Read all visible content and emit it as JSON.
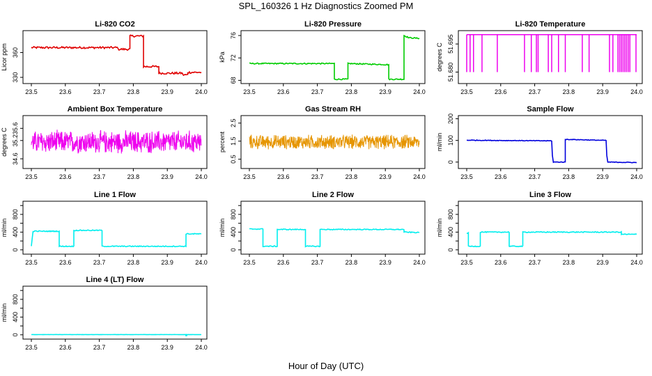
{
  "figure": {
    "title": "SPL_160326  1 Hz Diagnostics Zoomed PM",
    "xlabel": "Hour of Day (UTC)"
  },
  "chart_data": [
    {
      "type": "line",
      "title": "Li-820 CO2",
      "ylabel": "Licor ppm",
      "color": "#e00000",
      "xlim": [
        23.5,
        24.0
      ],
      "ylim": [
        325,
        384
      ],
      "yticks": [
        "330",
        "360"
      ],
      "ytick_values": [
        330,
        360
      ],
      "xticks": [
        "23.5",
        "23.6",
        "23.7",
        "23.8",
        "23.9",
        "24.0"
      ],
      "noise": 1.2,
      "series": [
        {
          "x": [
            23.5,
            23.755,
            23.755,
            23.79,
            23.79,
            23.83,
            23.83,
            23.875,
            23.875,
            23.945,
            23.945,
            23.96,
            23.96,
            24.0
          ],
          "y": [
            366,
            366,
            364,
            364,
            380,
            380,
            343,
            343,
            335,
            335,
            333,
            333,
            336,
            336
          ]
        }
      ]
    },
    {
      "type": "line",
      "title": "Li-820 Pressure",
      "ylabel": "kPa",
      "color": "#00cc00",
      "xlim": [
        23.5,
        24.0
      ],
      "ylim": [
        67.8,
        76.5
      ],
      "yticks": [
        "68",
        "72",
        "76"
      ],
      "ytick_values": [
        68,
        72,
        76
      ],
      "xticks": [
        "23.5",
        "23.6",
        "23.7",
        "23.8",
        "23.9",
        "24.0"
      ],
      "noise": 0.1,
      "series": [
        {
          "x": [
            23.5,
            23.75,
            23.75,
            23.79,
            23.79,
            23.91,
            23.91,
            23.955,
            23.955,
            23.97,
            24.0
          ],
          "y": [
            71.0,
            71.0,
            68.2,
            68.2,
            71.0,
            70.8,
            68.2,
            68.2,
            76.0,
            75.6,
            75.5
          ]
        }
      ]
    },
    {
      "type": "line",
      "title": "Li-820 Temperature",
      "ylabel": "degrees C",
      "color": "#ee00ee",
      "xlim": [
        23.5,
        24.0
      ],
      "ylim": [
        51.675,
        51.701
      ],
      "yticks": [
        "51.680",
        "51.695"
      ],
      "ytick_values": [
        51.68,
        51.695
      ],
      "xticks": [
        "23.5",
        "23.6",
        "23.7",
        "23.8",
        "23.9",
        "24.0"
      ],
      "baseline": 51.7,
      "spike_bottom": 51.68,
      "spikes": [
        23.5,
        23.51,
        23.52,
        23.545,
        23.59,
        23.67,
        23.69,
        23.705,
        23.71,
        23.74,
        23.75,
        23.77,
        23.79,
        23.84,
        23.86,
        23.92,
        23.93,
        23.945,
        23.95,
        23.955,
        23.96,
        23.965,
        23.97,
        23.975,
        23.98,
        23.998
      ]
    },
    {
      "type": "line",
      "title": "Ambient Box Temperature",
      "ylabel": "degrees C",
      "color": "#ee00ee",
      "xlim": [
        23.5,
        24.0
      ],
      "ylim": [
        34.35,
        35.95
      ],
      "yticks": [
        "34.6",
        "35.2",
        "35.6"
      ],
      "ytick_values": [
        34.6,
        35.2,
        35.6
      ],
      "xticks": [
        "23.5",
        "23.6",
        "23.7",
        "23.8",
        "23.9",
        "24.0"
      ],
      "band": {
        "center": 35.15,
        "amp": 0.42
      }
    },
    {
      "type": "line",
      "title": "Gas Stream RH",
      "ylabel": "percent",
      "color": "#e69500",
      "xlim": [
        23.5,
        24.0
      ],
      "ylim": [
        0.1,
        2.8
      ],
      "yticks": [
        "0.5",
        "1.5",
        "2.5"
      ],
      "ytick_values": [
        0.5,
        1.5,
        2.5
      ],
      "xticks": [
        "23.5",
        "23.6",
        "23.7",
        "23.8",
        "23.9",
        "24.0"
      ],
      "band": {
        "center": 1.45,
        "amp": 0.45
      }
    },
    {
      "type": "line",
      "title": "Sample Flow",
      "ylabel": "ml/min",
      "color": "#0000dd",
      "xlim": [
        23.5,
        24.0
      ],
      "ylim": [
        -20,
        205
      ],
      "yticks": [
        "0",
        "100",
        "200"
      ],
      "ytick_values": [
        0,
        100,
        200
      ],
      "xticks": [
        "23.5",
        "23.6",
        "23.7",
        "23.8",
        "23.9",
        "24.0"
      ],
      "noise": 1.5,
      "series": [
        {
          "x": [
            23.5,
            23.75,
            23.752,
            23.755,
            23.79,
            23.79,
            23.91,
            23.912,
            23.915,
            24.0
          ],
          "y": [
            101,
            98,
            30,
            0,
            0,
            105,
            100,
            30,
            0,
            -2
          ]
        }
      ]
    },
    {
      "type": "line",
      "title": "Line 1 Flow",
      "ylabel": "ml/min",
      "color": "#00eeee",
      "xlim": [
        23.5,
        24.0
      ],
      "ylim": [
        -50,
        1050
      ],
      "yticks": [
        "0",
        "400",
        "800"
      ],
      "ytick_values": [
        0,
        200,
        400,
        600,
        800,
        1000
      ],
      "ytick_labeled": [
        0,
        400,
        800
      ],
      "xticks": [
        "23.5",
        "23.6",
        "23.7",
        "23.8",
        "23.9",
        "24.0"
      ],
      "noise": 10,
      "series": [
        {
          "x": [
            23.5,
            23.505,
            23.582,
            23.582,
            23.625,
            23.625,
            23.708,
            23.708,
            23.955,
            23.955,
            24.0
          ],
          "y": [
            80,
            420,
            420,
            80,
            80,
            440,
            440,
            80,
            80,
            360,
            360
          ]
        }
      ]
    },
    {
      "type": "line",
      "title": "Line 2 Flow",
      "ylabel": "ml/min",
      "color": "#00eeee",
      "xlim": [
        23.5,
        24.0
      ],
      "ylim": [
        -50,
        1050
      ],
      "yticks": [
        "0",
        "400",
        "800"
      ],
      "ytick_values": [
        0,
        200,
        400,
        600,
        800,
        1000
      ],
      "ytick_labeled": [
        0,
        400,
        800
      ],
      "xticks": [
        "23.5",
        "23.6",
        "23.7",
        "23.8",
        "23.9",
        "24.0"
      ],
      "noise": 10,
      "series": [
        {
          "x": [
            23.5,
            23.54,
            23.54,
            23.582,
            23.582,
            23.665,
            23.665,
            23.708,
            23.708,
            23.955,
            23.955,
            24.0
          ],
          "y": [
            470,
            470,
            80,
            80,
            460,
            460,
            80,
            80,
            460,
            460,
            400,
            390
          ]
        }
      ]
    },
    {
      "type": "line",
      "title": "Line 3 Flow",
      "ylabel": "ml/min",
      "color": "#00eeee",
      "xlim": [
        23.5,
        24.0
      ],
      "ylim": [
        -50,
        1050
      ],
      "yticks": [
        "0",
        "400",
        "800"
      ],
      "ytick_values": [
        0,
        200,
        400,
        600,
        800,
        1000
      ],
      "ytick_labeled": [
        0,
        400,
        800
      ],
      "xticks": [
        "23.5",
        "23.6",
        "23.7",
        "23.8",
        "23.9",
        "24.0"
      ],
      "noise": 10,
      "series": [
        {
          "x": [
            23.5,
            23.505,
            23.505,
            23.54,
            23.54,
            23.625,
            23.625,
            23.665,
            23.665,
            23.955,
            23.955,
            24.0
          ],
          "y": [
            380,
            380,
            80,
            80,
            400,
            400,
            80,
            80,
            400,
            400,
            350,
            350
          ]
        }
      ]
    },
    {
      "type": "line",
      "title": "Line 4 (LT) Flow",
      "ylabel": "ml/min",
      "color": "#00eeee",
      "xlim": [
        23.5,
        24.0
      ],
      "ylim": [
        -50,
        1050
      ],
      "yticks": [
        "0",
        "400",
        "800"
      ],
      "ytick_values": [
        0,
        200,
        400,
        600,
        800,
        1000
      ],
      "ytick_labeled": [
        0,
        400,
        800
      ],
      "xticks": [
        "23.5",
        "23.6",
        "23.7",
        "23.8",
        "23.9",
        "24.0"
      ],
      "noise": 2,
      "series": [
        {
          "x": [
            23.5,
            23.955,
            23.955,
            23.957,
            23.957,
            24.0
          ],
          "y": [
            5,
            5,
            -20,
            -20,
            5,
            5
          ]
        }
      ]
    }
  ]
}
